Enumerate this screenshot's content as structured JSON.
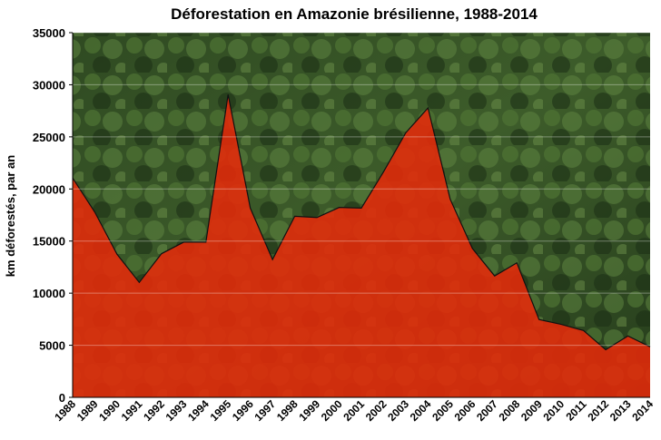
{
  "chart_data": {
    "type": "area",
    "title": "Déforestation en Amazonie brésilienne, 1988-2014",
    "y_label": "km déforestés, par an",
    "categories": [
      "1988",
      "1989",
      "1990",
      "1991",
      "1992",
      "1993",
      "1994",
      "1995",
      "1996",
      "1997",
      "1998",
      "1999",
      "2000",
      "2001",
      "2002",
      "2003",
      "2004",
      "2005",
      "2006",
      "2007",
      "2008",
      "2009",
      "2010",
      "2011",
      "2012",
      "2013",
      "2014"
    ],
    "values": [
      21050,
      17770,
      13730,
      11030,
      13786,
      14896,
      14896,
      29059,
      18161,
      13227,
      17383,
      17259,
      18226,
      18165,
      21651,
      25396,
      27772,
      19014,
      14286,
      11651,
      12911,
      7464,
      7000,
      6418,
      4571,
      5891,
      4848
    ],
    "color": "#e52a0a",
    "ylim": [
      0,
      35000
    ],
    "yticks": [
      0,
      5000,
      10000,
      15000,
      20000,
      25000,
      30000,
      35000
    ],
    "grid": true
  }
}
